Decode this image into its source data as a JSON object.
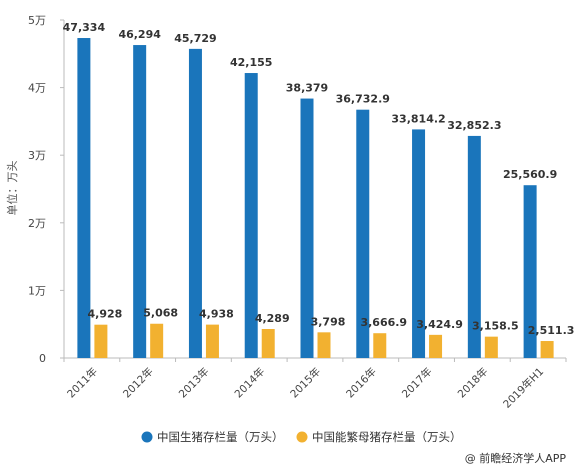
{
  "chart_data": {
    "type": "bar",
    "categories": [
      "2011年",
      "2012年",
      "2013年",
      "2014年",
      "2015年",
      "2016年",
      "2017年",
      "2018年",
      "2019年H1"
    ],
    "series": [
      {
        "name": "中国生猪存栏量（万头）",
        "values": [
          47334,
          46294,
          45729,
          42155,
          38379,
          36732.9,
          33814.2,
          32852.3,
          25560.9
        ],
        "labels": [
          "47,334",
          "46,294",
          "45,729",
          "42,155",
          "38,379",
          "36,732.9",
          "33,814.2",
          "32,852.3",
          "25,560.9"
        ],
        "color": "#1a75bb"
      },
      {
        "name": "中国能繁母猪存栏量（万头）",
        "values": [
          4928,
          5068,
          4938,
          4289,
          3798,
          3666.9,
          3424.9,
          3158.5,
          2511.3
        ],
        "labels": [
          "4,928",
          "5,068",
          "4,938",
          "4,289",
          "3,798",
          "3,666.9",
          "3,424.9",
          "3,158.5",
          "2,511.3"
        ],
        "color": "#f2b130"
      }
    ],
    "ylabel": "单位：万头",
    "ylim": [
      0,
      50000
    ],
    "yticks": [
      0,
      10000,
      20000,
      30000,
      40000,
      50000
    ],
    "ytick_labels": [
      "0",
      "1万",
      "2万",
      "3万",
      "4万",
      "5万"
    ],
    "grid": false,
    "legend_position": "bottom"
  },
  "source": "@ 前瞻经济学人APP"
}
